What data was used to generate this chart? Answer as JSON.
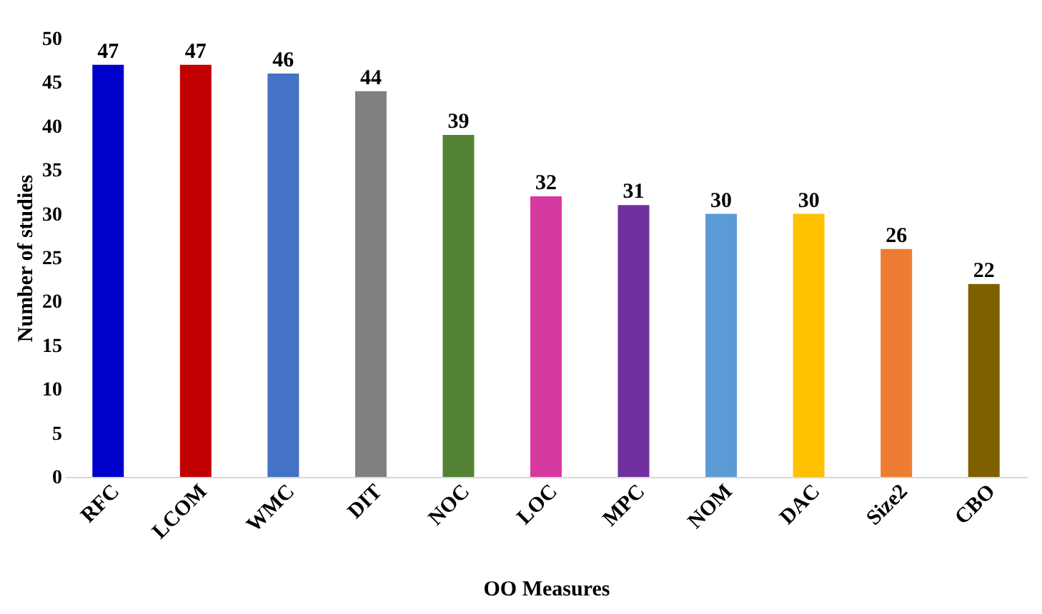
{
  "chart_data": {
    "type": "bar",
    "xlabel": "OO Measures",
    "ylabel": "Number of studies",
    "categories": [
      "RFC",
      "LCOM",
      "WMC",
      "DIT",
      "NOC",
      "LOC",
      "MPC",
      "NOM",
      "DAC",
      "Size2",
      "CBO"
    ],
    "values": [
      47,
      47,
      46,
      44,
      39,
      32,
      31,
      30,
      30,
      26,
      22
    ],
    "colors": [
      "#0000cc",
      "#c00000",
      "#4472c4",
      "#808080",
      "#548235",
      "#d6399f",
      "#7030a0",
      "#5b9bd5",
      "#ffc000",
      "#ed7d31",
      "#7f6000"
    ],
    "ylim": [
      0,
      50
    ],
    "yticks": [
      0,
      5,
      10,
      15,
      20,
      25,
      30,
      35,
      40,
      45,
      50
    ],
    "grid": false,
    "legend": false,
    "data_labels": true
  }
}
